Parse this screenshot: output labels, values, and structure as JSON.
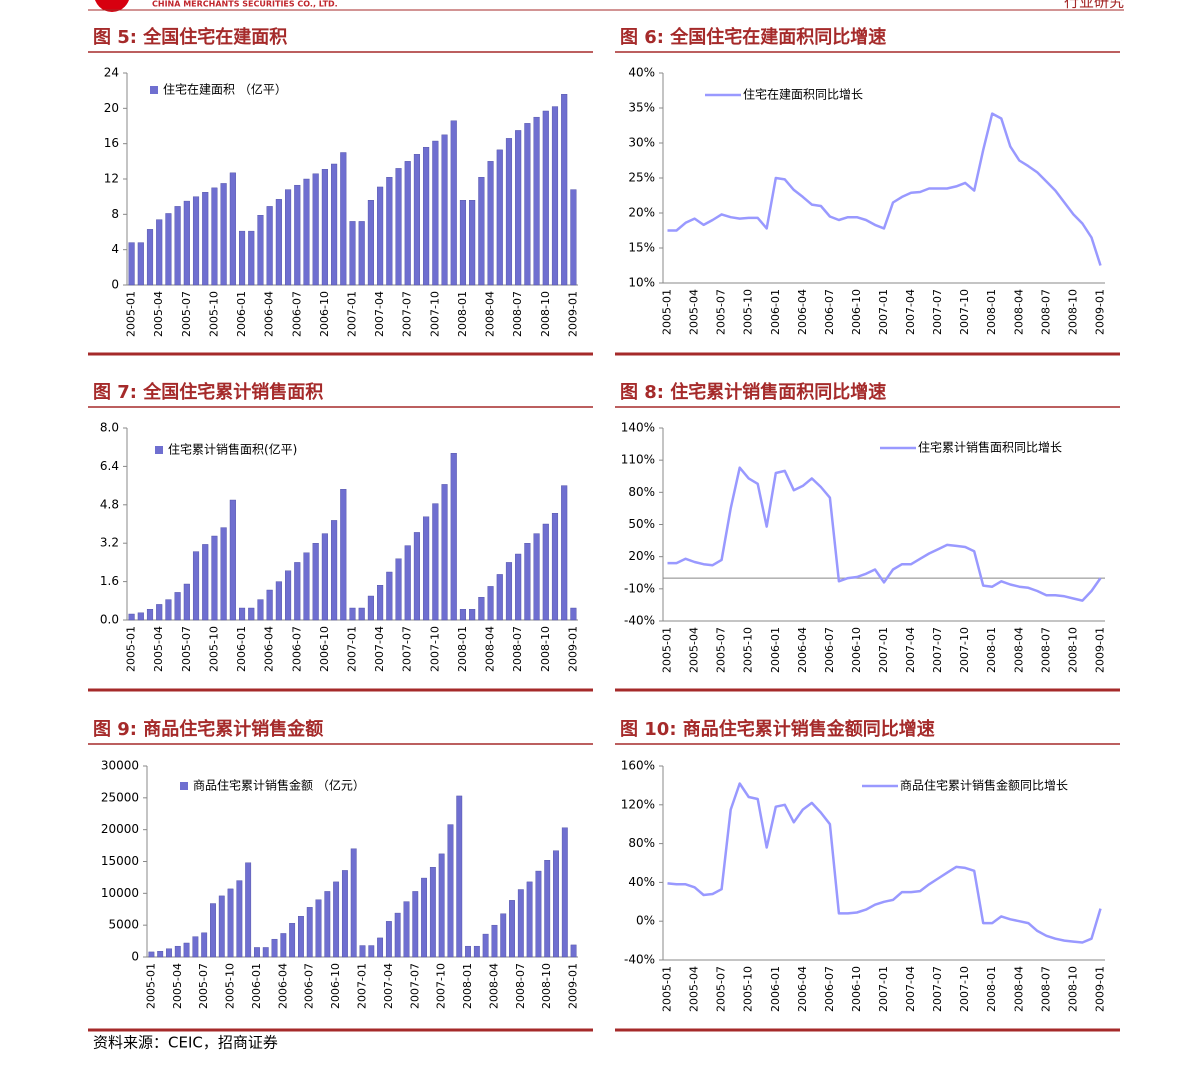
{
  "page": {
    "header": {
      "company": "CHINA MERCHANTS SECURITIES CO., LTD.",
      "section": "行业研究"
    },
    "source": "资料来源：CEIC，招商证券"
  },
  "chart_data": [
    {
      "type": "bar",
      "title": "图 5:  全国住宅在建面积",
      "ylim": [
        0,
        24
      ],
      "yticks": [
        0,
        4,
        8,
        12,
        16,
        20,
        24
      ],
      "categories": [
        "2005-01",
        null,
        null,
        "2005-04",
        null,
        null,
        "2005-07",
        null,
        null,
        "2005-10",
        null,
        null,
        "2006-01",
        null,
        null,
        "2006-04",
        null,
        null,
        "2006-07",
        null,
        null,
        "2006-10",
        null,
        null,
        "2007-01",
        null,
        null,
        "2007-04",
        null,
        null,
        "2007-07",
        null,
        null,
        "2007-10",
        null,
        null,
        "2008-01",
        null,
        null,
        "2008-04",
        null,
        null,
        "2008-07",
        null,
        null,
        "2008-10",
        null,
        null,
        "2009-01"
      ],
      "series": [
        {
          "name": "住宅在建面积 （亿平）",
          "color": "#6f6fd0",
          "values": [
            4.8,
            4.8,
            6.3,
            7.4,
            8.1,
            8.9,
            9.5,
            10.0,
            10.5,
            11.0,
            11.5,
            12.7,
            6.1,
            6.1,
            7.9,
            8.9,
            9.7,
            10.8,
            11.3,
            12.0,
            12.6,
            13.1,
            13.7,
            15.0,
            7.2,
            7.2,
            9.6,
            11.1,
            12.2,
            13.2,
            14.0,
            14.8,
            15.6,
            16.3,
            17.0,
            18.6,
            9.6,
            9.6,
            12.2,
            14.0,
            15.3,
            16.6,
            17.5,
            18.3,
            19.0,
            19.7,
            20.2,
            21.6,
            10.8
          ]
        }
      ]
    },
    {
      "type": "line",
      "title": "图 6:  全国住宅在建面积同比增速",
      "ylim": [
        10,
        40
      ],
      "yticks": [
        {
          "value": 10,
          "label": "10%"
        },
        {
          "value": 15,
          "label": "15%"
        },
        {
          "value": 20,
          "label": "20%"
        },
        {
          "value": 25,
          "label": "25%"
        },
        {
          "value": 30,
          "label": "30%"
        },
        {
          "value": 35,
          "label": "35%"
        },
        {
          "value": 40,
          "label": "40%"
        }
      ],
      "categories": [
        "2005-01",
        null,
        null,
        "2005-04",
        null,
        null,
        "2005-07",
        null,
        null,
        "2005-10",
        null,
        null,
        "2006-01",
        null,
        null,
        "2006-04",
        null,
        null,
        "2006-07",
        null,
        null,
        "2006-10",
        null,
        null,
        "2007-01",
        null,
        null,
        "2007-04",
        null,
        null,
        "2007-07",
        null,
        null,
        "2007-10",
        null,
        null,
        "2008-01",
        null,
        null,
        "2008-04",
        null,
        null,
        "2008-07",
        null,
        null,
        "2008-10",
        null,
        null,
        "2009-01"
      ],
      "series": [
        {
          "name": "住宅在建面积同比增长",
          "color": "#9999ff",
          "values": [
            17.5,
            17.5,
            18.6,
            19.2,
            18.3,
            19.0,
            19.8,
            19.4,
            19.2,
            19.3,
            19.3,
            17.8,
            25.0,
            24.8,
            23.3,
            22.3,
            21.2,
            21.0,
            19.5,
            19.0,
            19.4,
            19.4,
            19.0,
            18.3,
            17.8,
            21.5,
            22.3,
            22.9,
            23.0,
            23.5,
            23.5,
            23.5,
            23.8,
            24.3,
            23.2,
            29.0,
            34.2,
            33.5,
            29.5,
            27.5,
            26.7,
            25.8,
            24.5,
            23.2,
            21.5,
            19.8,
            18.5,
            16.5,
            12.5
          ]
        }
      ]
    },
    {
      "type": "bar",
      "title": "图 7:  全国住宅累计销售面积",
      "ylim": [
        0,
        8
      ],
      "yticks": [
        {
          "value": 0,
          "label": "0.0"
        },
        1.6,
        3.2,
        4.8,
        6.4,
        {
          "value": 8,
          "label": "8.0"
        }
      ],
      "categories": [
        "2005-01",
        null,
        null,
        "2005-04",
        null,
        null,
        "2005-07",
        null,
        null,
        "2005-10",
        null,
        null,
        "2006-01",
        null,
        null,
        "2006-04",
        null,
        null,
        "2006-07",
        null,
        null,
        "2006-10",
        null,
        null,
        "2007-01",
        null,
        null,
        "2007-04",
        null,
        null,
        "2007-07",
        null,
        null,
        "2007-10",
        null,
        null,
        "2008-01",
        null,
        null,
        "2008-04",
        null,
        null,
        "2008-07",
        null,
        null,
        "2008-10",
        null,
        null,
        "2009-01"
      ],
      "series": [
        {
          "name": "住宅累计销售面积(亿平)",
          "color": "#6f6fd0",
          "values": [
            0.25,
            0.3,
            0.45,
            0.65,
            0.85,
            1.15,
            1.5,
            2.85,
            3.15,
            3.5,
            3.85,
            5.0,
            0.5,
            0.5,
            0.85,
            1.25,
            1.6,
            2.05,
            2.4,
            2.8,
            3.2,
            3.6,
            4.15,
            5.45,
            0.5,
            0.5,
            1.0,
            1.45,
            2.0,
            2.55,
            3.1,
            3.65,
            4.3,
            4.85,
            5.65,
            6.95,
            0.45,
            0.45,
            0.95,
            1.4,
            1.9,
            2.4,
            2.75,
            3.2,
            3.6,
            4.0,
            4.45,
            5.6,
            0.5
          ]
        }
      ]
    },
    {
      "type": "line",
      "title": "图 8:  住宅累计销售面积同比增速",
      "ylim": [
        -40,
        140
      ],
      "zero_line": true,
      "yticks": [
        {
          "value": -40,
          "label": "-40%"
        },
        {
          "value": -10,
          "label": "-10%"
        },
        {
          "value": 20,
          "label": "20%"
        },
        {
          "value": 50,
          "label": "50%"
        },
        {
          "value": 80,
          "label": "80%"
        },
        {
          "value": 110,
          "label": "110%"
        },
        {
          "value": 140,
          "label": "140%"
        }
      ],
      "categories": [
        "2005-01",
        null,
        null,
        "2005-04",
        null,
        null,
        "2005-07",
        null,
        null,
        "2005-10",
        null,
        null,
        "2006-01",
        null,
        null,
        "2006-04",
        null,
        null,
        "2006-07",
        null,
        null,
        "2006-10",
        null,
        null,
        "2007-01",
        null,
        null,
        "2007-04",
        null,
        null,
        "2007-07",
        null,
        null,
        "2007-10",
        null,
        null,
        "2008-01",
        null,
        null,
        "2008-04",
        null,
        null,
        "2008-07",
        null,
        null,
        "2008-10",
        null,
        null,
        "2009-01"
      ],
      "series": [
        {
          "name": "住宅累计销售面积同比增长",
          "color": "#9999ff",
          "values": [
            14,
            14,
            18,
            15,
            13,
            12,
            17,
            65,
            103,
            93,
            88,
            48,
            98,
            100,
            82,
            86,
            93,
            85,
            75,
            -3,
            0,
            1,
            4,
            8,
            -4,
            8,
            13,
            13,
            18,
            23,
            27,
            31,
            30,
            29,
            25,
            -7,
            -8,
            -3,
            -6,
            -8,
            -9,
            -12,
            -16,
            -16,
            -17,
            -19,
            -21,
            -12,
            0
          ]
        }
      ]
    },
    {
      "type": "bar",
      "title": "图 9:  商品住宅累计销售金额",
      "ylim": [
        0,
        30000
      ],
      "yticks": [
        0,
        5000,
        10000,
        15000,
        20000,
        25000,
        30000
      ],
      "categories": [
        "2005-01",
        null,
        null,
        "2005-04",
        null,
        null,
        "2005-07",
        null,
        null,
        "2005-10",
        null,
        null,
        "2006-01",
        null,
        null,
        "2006-04",
        null,
        null,
        "2006-07",
        null,
        null,
        "2006-10",
        null,
        null,
        "2007-01",
        null,
        null,
        "2007-04",
        null,
        null,
        "2007-07",
        null,
        null,
        "2007-10",
        null,
        null,
        "2008-01",
        null,
        null,
        "2008-04",
        null,
        null,
        "2008-07",
        null,
        null,
        "2008-10",
        null,
        null,
        "2009-01"
      ],
      "series": [
        {
          "name": "商品住宅累计销售金额 （亿元）",
          "color": "#6f6fd0",
          "values": [
            800,
            900,
            1300,
            1700,
            2200,
            3200,
            3800,
            8400,
            9600,
            10700,
            12000,
            14800,
            1500,
            1500,
            2800,
            3700,
            5300,
            6400,
            7800,
            9000,
            10300,
            11800,
            13600,
            17000,
            1800,
            1800,
            3000,
            5600,
            6900,
            8700,
            10300,
            12400,
            14100,
            16200,
            20800,
            25300,
            1700,
            1700,
            3600,
            5000,
            6800,
            8900,
            10600,
            11800,
            13500,
            15200,
            16700,
            20300,
            1900
          ]
        }
      ]
    },
    {
      "type": "line",
      "title": "图 10:  商品住宅累计销售金额同比增速",
      "ylim": [
        -40,
        160
      ],
      "yticks": [
        {
          "value": -40,
          "label": "-40%"
        },
        {
          "value": 0,
          "label": "0%"
        },
        {
          "value": 40,
          "label": "40%"
        },
        {
          "value": 80,
          "label": "80%"
        },
        {
          "value": 120,
          "label": "120%"
        },
        {
          "value": 160,
          "label": "160%"
        }
      ],
      "categories": [
        "2005-01",
        null,
        null,
        "2005-04",
        null,
        null,
        "2005-07",
        null,
        null,
        "2005-10",
        null,
        null,
        "2006-01",
        null,
        null,
        "2006-04",
        null,
        null,
        "2006-07",
        null,
        null,
        "2006-10",
        null,
        null,
        "2007-01",
        null,
        null,
        "2007-04",
        null,
        null,
        "2007-07",
        null,
        null,
        "2007-10",
        null,
        null,
        "2008-01",
        null,
        null,
        "2008-04",
        null,
        null,
        "2008-07",
        null,
        null,
        "2008-10",
        null,
        null,
        "2009-01"
      ],
      "series": [
        {
          "name": "商品住宅累计销售金额同比增长",
          "color": "#9999ff",
          "values": [
            39,
            38,
            38,
            35,
            27,
            28,
            33,
            115,
            142,
            128,
            126,
            76,
            118,
            120,
            102,
            115,
            122,
            112,
            100,
            8,
            8,
            9,
            12,
            17,
            20,
            22,
            30,
            30,
            31,
            38,
            44,
            50,
            56,
            55,
            52,
            -2,
            -2,
            5,
            2,
            0,
            -2,
            -10,
            -15,
            -18,
            -20,
            -21,
            -22,
            -18,
            13
          ]
        }
      ]
    }
  ]
}
